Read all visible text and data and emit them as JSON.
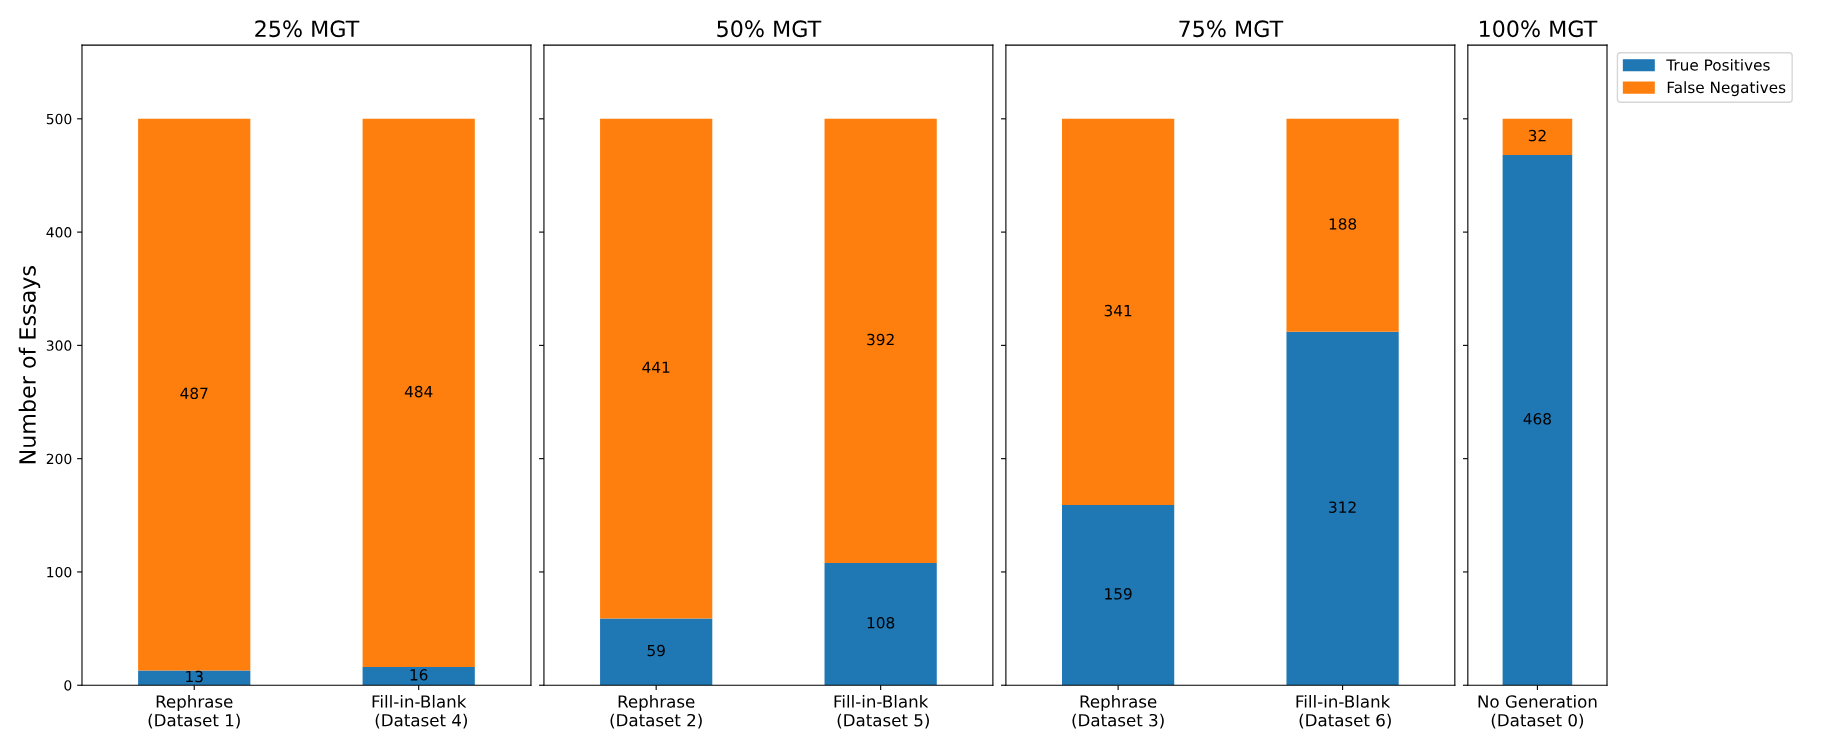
{
  "chart_data": [
    {
      "type": "bar",
      "stacked": true,
      "title": "25% MGT",
      "ylabel": "Number of Essays",
      "categories": [
        "Rephrase\n(Dataset 1)",
        "Fill-in-Blank\n (Dataset 4)"
      ],
      "ylim": [
        0,
        565
      ],
      "yticks": [
        0,
        100,
        200,
        300,
        400,
        500
      ],
      "data_labels": true,
      "legend": false,
      "series": [
        {
          "color": "#1f77b4",
          "values": [
            13,
            16
          ]
        },
        {
          "color": "#ff7f0e",
          "values": [
            487,
            484
          ]
        }
      ]
    },
    {
      "type": "bar",
      "stacked": true,
      "title": "50% MGT",
      "categories": [
        "Rephrase\n(Dataset 2)",
        "Fill-in-Blank\n (Dataset 5)"
      ],
      "ylim": [
        0,
        565
      ],
      "yticks": [
        0,
        100,
        200,
        300,
        400,
        500
      ],
      "tick_labels": "x",
      "data_labels": true,
      "legend": false,
      "series": [
        {
          "color": "#1f77b4",
          "values": [
            59,
            108
          ]
        },
        {
          "color": "#ff7f0e",
          "values": [
            441,
            392
          ]
        }
      ]
    },
    {
      "type": "bar",
      "stacked": true,
      "title": "75% MGT",
      "categories": [
        "Rephrase\n(Dataset 3)",
        "Fill-in-Blank\n (Dataset 6)"
      ],
      "ylim": [
        0,
        565
      ],
      "yticks": [
        0,
        100,
        200,
        300,
        400,
        500
      ],
      "tick_labels": "x",
      "data_labels": true,
      "legend": false,
      "series": [
        {
          "color": "#1f77b4",
          "values": [
            159,
            312
          ]
        },
        {
          "color": "#ff7f0e",
          "values": [
            341,
            188
          ]
        }
      ]
    },
    {
      "type": "bar",
      "stacked": true,
      "title": "100% MGT",
      "categories": [
        "No Generation\n(Dataset 0)"
      ],
      "ylim": [
        0,
        565
      ],
      "yticks": [
        0,
        100,
        200,
        300,
        400,
        500
      ],
      "tick_labels": "x",
      "data_labels": true,
      "legend": "right",
      "series": [
        {
          "name": "True Positives",
          "color": "#1f77b4",
          "values": [
            468
          ]
        },
        {
          "name": "False Negatives",
          "color": "#ff7f0e",
          "values": [
            32
          ]
        }
      ]
    }
  ]
}
